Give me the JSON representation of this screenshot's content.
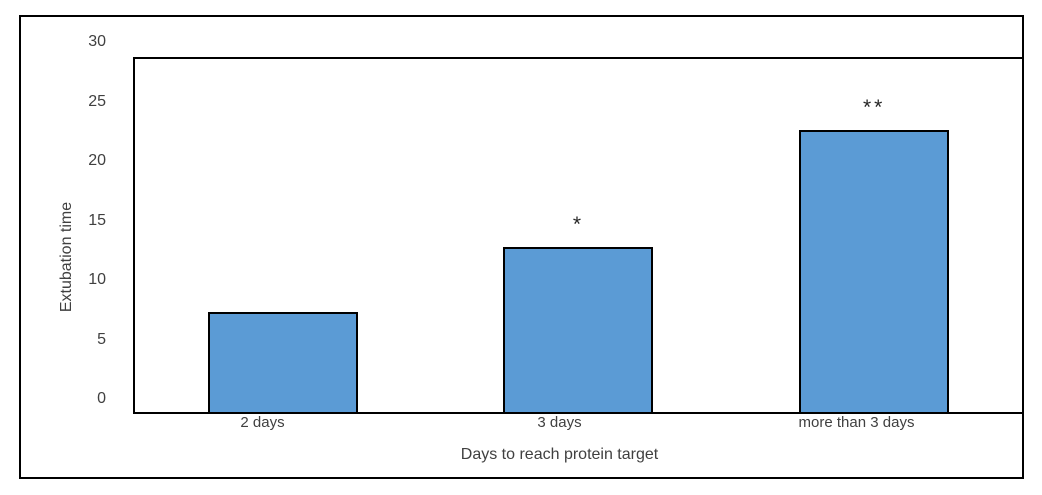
{
  "chart_data": {
    "type": "bar",
    "title": "",
    "xlabel": "Days to reach protein target",
    "ylabel": "Extubation time",
    "categories": [
      "2 days",
      "3 days",
      "more than 3 days"
    ],
    "values": [
      8.5,
      14,
      24
    ],
    "annotations": [
      "",
      "*",
      "**"
    ],
    "ylim": [
      0,
      30
    ],
    "yticks": [
      0,
      5,
      10,
      15,
      20,
      25,
      30
    ],
    "grid": false,
    "legend_position": "none",
    "bar_color": "#5B9BD5",
    "bar_border_color": "#000000",
    "frame_border_color": "#000000",
    "text_color": "#404040"
  }
}
